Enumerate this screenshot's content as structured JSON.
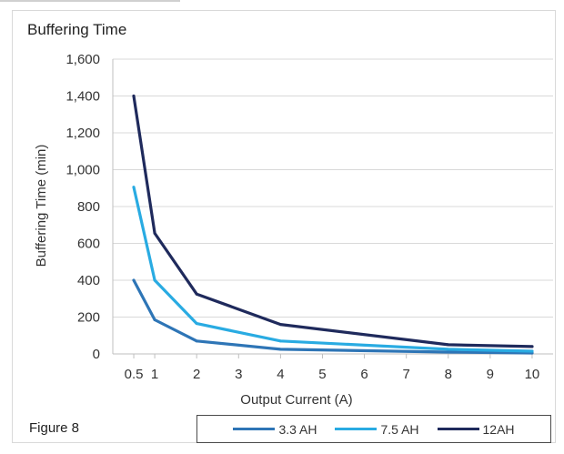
{
  "figure_label": "Figure 8",
  "chart_data": {
    "type": "line",
    "title": "Buffering Time",
    "xlabel": "Output Current (A)",
    "ylabel": "Buffering Time (min)",
    "ylim": [
      0,
      1600
    ],
    "y_ticks": [
      0,
      200,
      400,
      600,
      800,
      1000,
      1200,
      1400,
      1600
    ],
    "y_tick_labels": [
      "0",
      "200",
      "400",
      "600",
      "800",
      "1,000",
      "1,200",
      "1,400",
      "1,600"
    ],
    "x_ticks": [
      0.5,
      1,
      2,
      3,
      4,
      5,
      6,
      7,
      8,
      9,
      10
    ],
    "x_tick_labels": [
      "0.5",
      "1",
      "2",
      "3",
      "4",
      "5",
      "6",
      "7",
      "8",
      "9",
      "10"
    ],
    "x": [
      0.5,
      1,
      2,
      4,
      8,
      10
    ],
    "grid": "horizontal",
    "legend_position": "bottom",
    "series": [
      {
        "name": "3.3 AH",
        "color": "#2e75b6",
        "values": [
          400,
          185,
          70,
          25,
          10,
          5
        ]
      },
      {
        "name": "7.5 AH",
        "color": "#29abe2",
        "values": [
          905,
          400,
          165,
          70,
          25,
          15
        ]
      },
      {
        "name": "12AH",
        "color": "#1f2a5c",
        "values": [
          1400,
          655,
          325,
          160,
          50,
          40
        ]
      }
    ]
  }
}
